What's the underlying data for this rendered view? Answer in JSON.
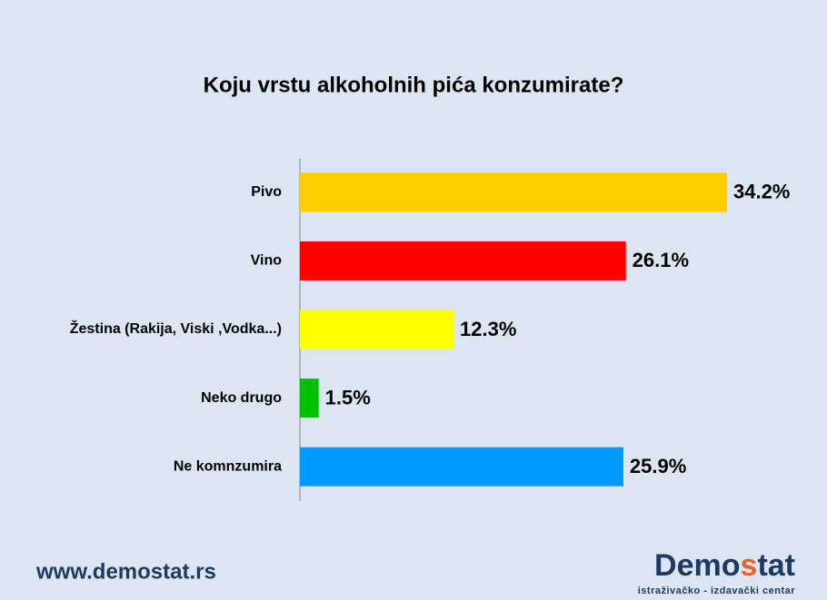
{
  "chart_data": {
    "type": "bar",
    "orientation": "horizontal",
    "title": "Koju vrstu alkoholnih pića konzumirate?",
    "categories": [
      "Pivo",
      "Vino",
      "Žestina (Rakija, Viski ,Vodka...)",
      "Neko drugo",
      "Ne komnzumira"
    ],
    "values": [
      34.2,
      26.1,
      12.3,
      1.5,
      25.9
    ],
    "value_labels": [
      "34.2%",
      "26.1%",
      "12.3%",
      "1.5%",
      "25.9%"
    ],
    "colors": [
      "#ffcc00",
      "#ff0000",
      "#ffff00",
      "#00c000",
      "#0099ff"
    ],
    "xlim": [
      0,
      40
    ]
  },
  "footer": {
    "url": "www.demostat.rs",
    "logo_parts": [
      "Demo",
      "s",
      "tat"
    ],
    "logo_tagline": "istraživačko - izdavački centar"
  }
}
